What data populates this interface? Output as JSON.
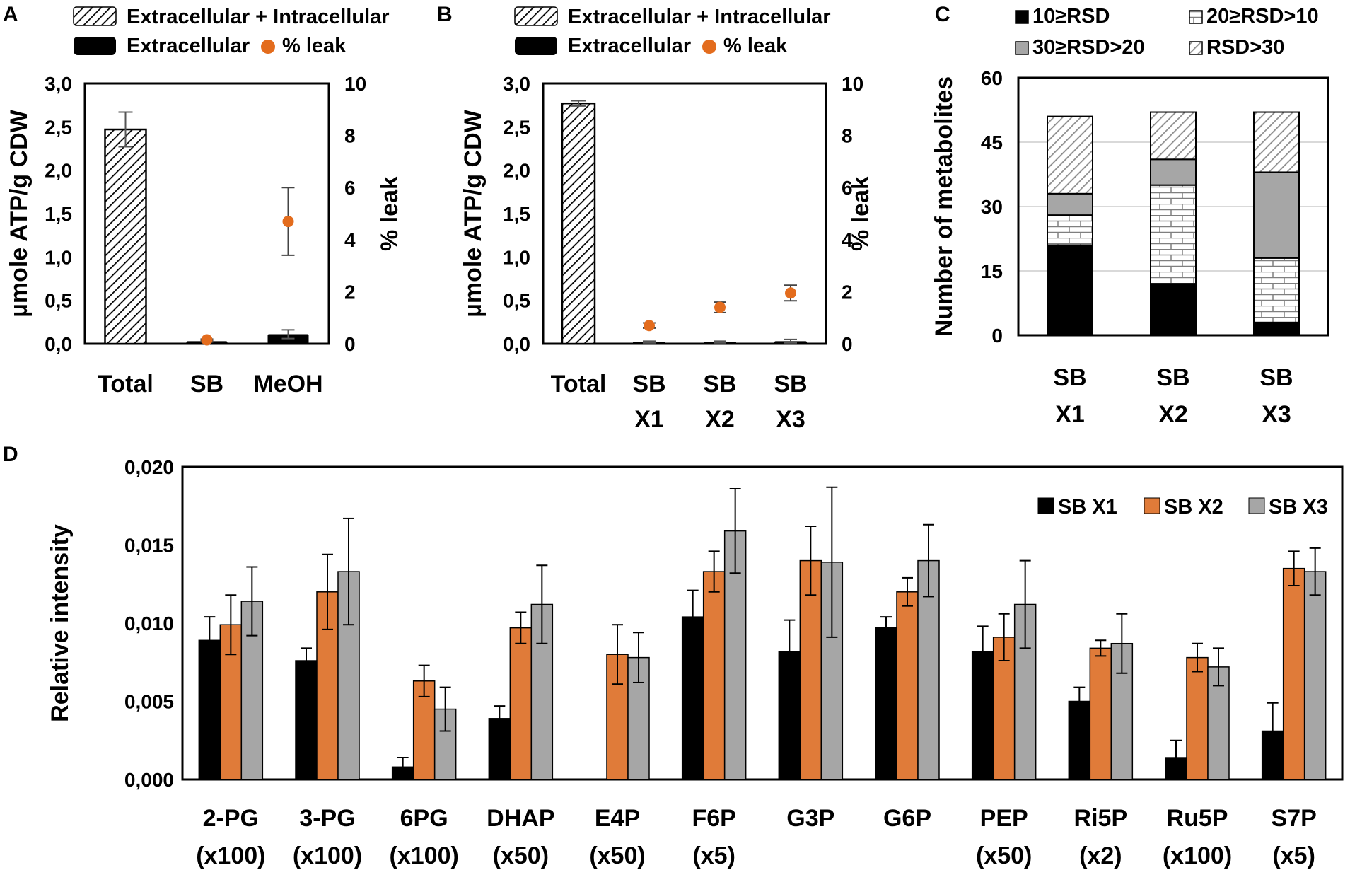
{
  "chart_data": [
    {
      "panel": "A",
      "type": "bar",
      "categories": [
        [
          "Total"
        ],
        [
          "SB"
        ],
        [
          "MeOH"
        ]
      ],
      "ylabel": "µmole ATP/g CDW",
      "y2label": "% leak",
      "ylim": [
        0,
        3
      ],
      "y2lim": [
        0,
        10
      ],
      "yticks": [
        "0,0",
        "0,5",
        "1,0",
        "1,5",
        "2,0",
        "2,5",
        "3,0"
      ],
      "y2ticks": [
        "0",
        "2",
        "4",
        "6",
        "8",
        "10"
      ],
      "legend": {
        "hatched": "Extracellular + Intracellular",
        "black": "Extracellular",
        "dot": "% leak"
      },
      "series": [
        {
          "name": "Extracellular + Intracellular",
          "values": [
            2.47,
            null,
            null
          ],
          "errors": [
            0.2,
            null,
            null
          ]
        },
        {
          "name": "Extracellular",
          "values": [
            null,
            0.03,
            0.11
          ],
          "errors": [
            null,
            0.01,
            0.05
          ]
        },
        {
          "name": "% leak",
          "axis": "y2",
          "values": [
            null,
            0.15,
            4.7
          ],
          "errors": [
            null,
            0.03,
            1.3
          ]
        }
      ]
    },
    {
      "panel": "B",
      "type": "bar",
      "categories": [
        [
          "Total"
        ],
        [
          "SB",
          "X1"
        ],
        [
          "SB",
          "X2"
        ],
        [
          "SB",
          "X3"
        ]
      ],
      "ylabel": "µmole ATP/g CDW",
      "y2label": "% leak",
      "ylim": [
        0,
        3
      ],
      "y2lim": [
        0,
        10
      ],
      "yticks": [
        "0,0",
        "0,5",
        "1,0",
        "1,5",
        "2,0",
        "2,5",
        "3,0"
      ],
      "y2ticks": [
        "0",
        "2",
        "4",
        "6",
        "8",
        "10"
      ],
      "legend": {
        "hatched": "Extracellular + Intracellular",
        "black": "Extracellular",
        "dot": "% leak"
      },
      "series": [
        {
          "name": "Extracellular + Intracellular",
          "values": [
            2.77,
            null,
            null,
            null
          ],
          "errors": [
            0.03,
            null,
            null,
            null
          ]
        },
        {
          "name": "Extracellular",
          "values": [
            null,
            0.02,
            0.02,
            0.03
          ],
          "errors": [
            null,
            0.01,
            0.01,
            0.02
          ]
        },
        {
          "name": "% leak",
          "axis": "y2",
          "values": [
            null,
            0.7,
            1.4,
            1.95
          ],
          "errors": [
            null,
            0.1,
            0.2,
            0.3
          ]
        }
      ]
    },
    {
      "panel": "C",
      "type": "bar",
      "stacked": true,
      "categories": [
        [
          "SB",
          "X1"
        ],
        [
          "SB",
          "X2"
        ],
        [
          "SB",
          "X3"
        ]
      ],
      "ylabel": "Number of metabolites",
      "ylim": [
        0,
        60
      ],
      "yticks": [
        "0",
        "15",
        "30",
        "45",
        "60"
      ],
      "series": [
        {
          "name": "10≥RSD",
          "values": [
            21,
            12,
            3
          ]
        },
        {
          "name": "20≥RSD>10",
          "values": [
            7,
            23,
            15
          ]
        },
        {
          "name": "30≥RSD>20",
          "values": [
            5,
            6,
            20
          ]
        },
        {
          "name": "RSD>30",
          "values": [
            18,
            11,
            14
          ]
        }
      ]
    },
    {
      "panel": "D",
      "type": "bar",
      "categories": [
        [
          "2-PG",
          "(x100)"
        ],
        [
          "3-PG",
          "(x100)"
        ],
        [
          "6PG",
          "(x100)"
        ],
        [
          "DHAP",
          "(x50)"
        ],
        [
          "E4P",
          "(x50)"
        ],
        [
          "F6P",
          "(x5)"
        ],
        [
          "G3P"
        ],
        [
          "G6P"
        ],
        [
          "PEP",
          "(x50)"
        ],
        [
          "Ri5P",
          "(x2)"
        ],
        [
          "Ru5P",
          "(x100)"
        ],
        [
          "S7P",
          "(x5)"
        ]
      ],
      "ylabel": "Relative intensity",
      "ylim": [
        0,
        0.02
      ],
      "yticks": [
        "0,000",
        "0,005",
        "0,010",
        "0,015",
        "0,020"
      ],
      "series": [
        {
          "name": "SB X1",
          "color": "#000000",
          "values": [
            0.0089,
            0.0076,
            0.0008,
            0.0039,
            null,
            0.0104,
            0.0082,
            0.0097,
            0.0082,
            0.005,
            0.0014,
            0.0031
          ],
          "errors": [
            0.0015,
            0.0008,
            0.0006,
            0.0008,
            null,
            0.0017,
            0.002,
            0.0007,
            0.0016,
            0.0009,
            0.0011,
            0.0018
          ]
        },
        {
          "name": "SB X2",
          "color": "#e07b39",
          "values": [
            0.0099,
            0.012,
            0.0063,
            0.0097,
            0.008,
            0.0133,
            0.014,
            0.012,
            0.0091,
            0.0084,
            0.0078,
            0.0135
          ],
          "errors": [
            0.0019,
            0.0024,
            0.001,
            0.001,
            0.0019,
            0.0013,
            0.0022,
            0.0009,
            0.0015,
            0.0005,
            0.0009,
            0.0011
          ]
        },
        {
          "name": "SB X3",
          "color": "#a6a6a6",
          "values": [
            0.0114,
            0.0133,
            0.0045,
            0.0112,
            0.0078,
            0.0159,
            0.0139,
            0.014,
            0.0112,
            0.0087,
            0.0072,
            0.0133
          ],
          "errors": [
            0.0022,
            0.0034,
            0.0014,
            0.0025,
            0.0016,
            0.0027,
            0.0048,
            0.0023,
            0.0028,
            0.0019,
            0.0012,
            0.0015
          ]
        }
      ]
    }
  ],
  "panels": {
    "a": "A",
    "b": "B",
    "c": "C",
    "d": "D"
  }
}
